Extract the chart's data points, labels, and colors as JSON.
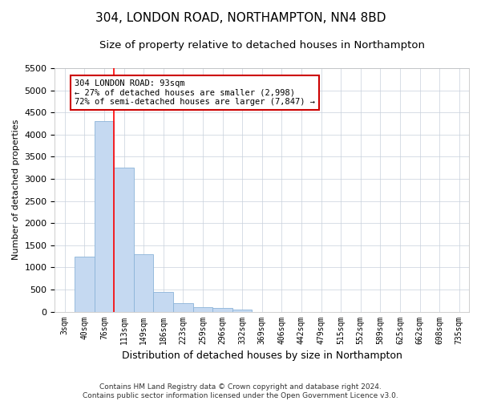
{
  "title": "304, LONDON ROAD, NORTHAMPTON, NN4 8BD",
  "subtitle": "Size of property relative to detached houses in Northampton",
  "xlabel": "Distribution of detached houses by size in Northampton",
  "ylabel": "Number of detached properties",
  "footer_line1": "Contains HM Land Registry data © Crown copyright and database right 2024.",
  "footer_line2": "Contains public sector information licensed under the Open Government Licence v3.0.",
  "bar_labels": [
    "3sqm",
    "40sqm",
    "76sqm",
    "113sqm",
    "149sqm",
    "186sqm",
    "223sqm",
    "259sqm",
    "296sqm",
    "332sqm",
    "369sqm",
    "406sqm",
    "442sqm",
    "479sqm",
    "515sqm",
    "552sqm",
    "589sqm",
    "625sqm",
    "662sqm",
    "698sqm",
    "735sqm"
  ],
  "bar_values": [
    0,
    1250,
    4300,
    3250,
    1300,
    450,
    200,
    100,
    75,
    50,
    0,
    0,
    0,
    0,
    0,
    0,
    0,
    0,
    0,
    0,
    0
  ],
  "bar_color": "#c5d9f1",
  "bar_edgecolor": "#8cb4d8",
  "ylim": [
    0,
    5500
  ],
  "yticks": [
    0,
    500,
    1000,
    1500,
    2000,
    2500,
    3000,
    3500,
    4000,
    4500,
    5000,
    5500
  ],
  "red_line_x": 2.5,
  "annotation_text": "304 LONDON ROAD: 93sqm\n← 27% of detached houses are smaller (2,998)\n72% of semi-detached houses are larger (7,847) →",
  "annotation_box_color": "#ffffff",
  "annotation_box_edgecolor": "#cc0000",
  "title_fontsize": 11,
  "subtitle_fontsize": 9.5,
  "background_color": "#ffffff",
  "grid_color": "#c8d0dc"
}
